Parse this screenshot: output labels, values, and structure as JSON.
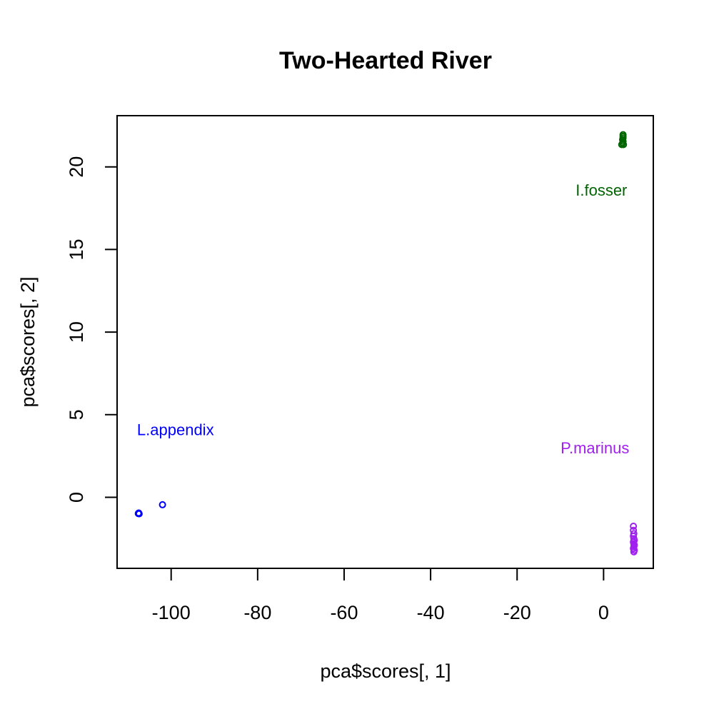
{
  "chart_data": {
    "type": "scatter",
    "title": "Two-Hearted River",
    "xlabel": "pca$scores[, 1]",
    "ylabel": "pca$scores[, 2]",
    "xlim": [
      -112.5,
      11.5
    ],
    "ylim": [
      -4.3,
      23.1
    ],
    "x_ticks": [
      {
        "value": -100,
        "label": "-100"
      },
      {
        "value": -80,
        "label": "-80"
      },
      {
        "value": -60,
        "label": "-60"
      },
      {
        "value": -40,
        "label": "-40"
      },
      {
        "value": -20,
        "label": "-20"
      },
      {
        "value": 0,
        "label": "0"
      }
    ],
    "y_ticks": [
      {
        "value": 0,
        "label": "0"
      },
      {
        "value": 5,
        "label": "5"
      },
      {
        "value": 10,
        "label": "10"
      },
      {
        "value": 15,
        "label": "15"
      },
      {
        "value": 20,
        "label": "20"
      }
    ],
    "grid": false,
    "legend": "none",
    "marker": "open-circle",
    "series": [
      {
        "name": "L.appendix",
        "color": "#0000ff",
        "label_at": {
          "x": -99,
          "y": 4.1
        },
        "points": [
          {
            "x": -107.5,
            "y": -0.95
          },
          {
            "x": -107.6,
            "y": -0.98
          },
          {
            "x": -107.4,
            "y": -1.0
          },
          {
            "x": -102.0,
            "y": -0.45
          }
        ]
      },
      {
        "name": "I.fosser",
        "color": "#006400",
        "label_at": {
          "x": -0.5,
          "y": 18.6
        },
        "points": [
          {
            "x": 4.5,
            "y": 21.85
          },
          {
            "x": 4.5,
            "y": 21.75
          },
          {
            "x": 4.4,
            "y": 21.65
          },
          {
            "x": 4.5,
            "y": 21.55
          },
          {
            "x": 4.4,
            "y": 21.45
          },
          {
            "x": 4.2,
            "y": 21.35
          },
          {
            "x": 4.6,
            "y": 21.35
          },
          {
            "x": 4.5,
            "y": 21.95
          }
        ]
      },
      {
        "name": "P.marinus",
        "color": "#a020f0",
        "label_at": {
          "x": -2,
          "y": 3.0
        },
        "points": [
          {
            "x": 6.9,
            "y": -1.75
          },
          {
            "x": 6.9,
            "y": -2.0
          },
          {
            "x": 7.0,
            "y": -2.2
          },
          {
            "x": 6.9,
            "y": -2.35
          },
          {
            "x": 7.0,
            "y": -2.5
          },
          {
            "x": 7.1,
            "y": -2.6
          },
          {
            "x": 6.9,
            "y": -2.7
          },
          {
            "x": 7.0,
            "y": -2.8
          },
          {
            "x": 7.1,
            "y": -2.9
          },
          {
            "x": 7.0,
            "y": -3.0
          },
          {
            "x": 6.9,
            "y": -3.1
          },
          {
            "x": 7.1,
            "y": -3.2
          },
          {
            "x": 7.0,
            "y": -3.3
          }
        ]
      }
    ]
  }
}
